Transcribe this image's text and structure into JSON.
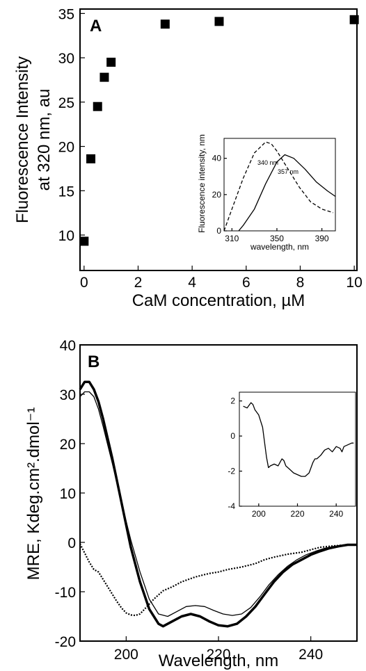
{
  "chart_data": [
    {
      "panel": "A",
      "type": "scatter",
      "xlabel": "CaM concentration, µM",
      "ylabel_line1": "Fluorescence Intensity",
      "ylabel_line2": "at 320 nm, au",
      "xlim": [
        -0.15,
        10.1
      ],
      "ylim": [
        6,
        35.5
      ],
      "xticks": [
        0,
        2,
        4,
        6,
        8,
        10
      ],
      "yticks": [
        10,
        15,
        20,
        25,
        30,
        35
      ],
      "marker": "square",
      "x": [
        0,
        0.25,
        0.5,
        0.75,
        1,
        3,
        5,
        10
      ],
      "y": [
        9.3,
        18.6,
        24.5,
        27.8,
        29.5,
        33.8,
        34.1,
        34.3
      ],
      "inset": {
        "type": "line",
        "xlabel": "wavelength, nm",
        "ylabel": "Fluorescence intensity, nm",
        "xlim": [
          303,
          402
        ],
        "ylim": [
          0,
          51
        ],
        "xticks": [
          310,
          350,
          390
        ],
        "yticks": [
          0,
          20,
          40
        ],
        "annotations": [
          "340 nm",
          "357 nm"
        ],
        "series": [
          {
            "style": "dashed",
            "x": [
              303,
              310,
              320,
              330,
              340,
              345,
              350,
              360,
              370,
              380,
              390,
              400
            ],
            "y": [
              0,
              12,
              29,
              43,
              49,
              48,
              44,
              34,
              24,
              16,
              12,
              10
            ]
          },
          {
            "style": "solid",
            "x": [
              316,
              320,
              330,
              340,
              350,
              357,
              365,
              375,
              385,
              395,
              402
            ],
            "y": [
              0,
              3,
              12,
              26,
              38,
              42,
              40,
              34,
              27,
              22,
              19
            ]
          }
        ]
      }
    },
    {
      "panel": "B",
      "type": "line",
      "xlabel": "Wavelength, nm",
      "ylabel": "MRE, Kdeg.cm².dmol⁻¹",
      "xlim": [
        190,
        250
      ],
      "ylim": [
        -20,
        40
      ],
      "xticks": [
        200,
        220,
        240
      ],
      "yticks": [
        -20,
        -10,
        0,
        10,
        20,
        30,
        40
      ],
      "series": [
        {
          "style": "thick",
          "x": [
            190,
            191,
            192,
            193,
            194,
            195,
            197,
            199,
            201,
            203,
            205,
            207,
            208,
            210,
            212,
            214,
            216,
            218,
            220,
            222,
            224,
            226,
            228,
            230,
            232,
            234,
            236,
            238,
            240,
            242,
            244,
            246,
            248,
            250
          ],
          "y": [
            31,
            32.5,
            32.5,
            31,
            28.5,
            25,
            17,
            8,
            -1,
            -8,
            -13.5,
            -16.5,
            -17,
            -16,
            -15,
            -14.5,
            -15,
            -16,
            -16.8,
            -17,
            -16.5,
            -15,
            -13,
            -10.5,
            -8,
            -6,
            -4.5,
            -3.5,
            -2.5,
            -1.8,
            -1.2,
            -0.8,
            -0.5,
            -0.5
          ]
        },
        {
          "style": "thin",
          "x": [
            190,
            191,
            192,
            193,
            194,
            195,
            197,
            199,
            201,
            203,
            205,
            207,
            209,
            211,
            213,
            215,
            217,
            219,
            221,
            223,
            225,
            227,
            229,
            231,
            233,
            235,
            237,
            239,
            241,
            243,
            245,
            247,
            250
          ],
          "y": [
            29.5,
            30.5,
            30.5,
            29.5,
            27,
            23.5,
            16,
            8,
            0.5,
            -6,
            -11.5,
            -14.5,
            -15,
            -14,
            -13,
            -12.8,
            -13,
            -13.8,
            -14.5,
            -14.8,
            -14.5,
            -13.2,
            -11,
            -8.5,
            -6.5,
            -4.8,
            -3.5,
            -2.5,
            -1.8,
            -1.2,
            -0.8,
            -0.6,
            -0.4
          ]
        },
        {
          "style": "dotted",
          "x": [
            190,
            192,
            193,
            194,
            195,
            196,
            197,
            198,
            199,
            200,
            201,
            202,
            203,
            204,
            206,
            208,
            210,
            212,
            215,
            218,
            220,
            222,
            225,
            228,
            230,
            232,
            235,
            238,
            240,
            242,
            245,
            248,
            250
          ],
          "y": [
            -0.3,
            -4,
            -5.5,
            -6,
            -7.5,
            -9,
            -10.5,
            -12,
            -13.3,
            -14.3,
            -14.7,
            -14.8,
            -14.5,
            -13.5,
            -11.5,
            -9.8,
            -9,
            -8,
            -7,
            -6.3,
            -6,
            -5.5,
            -5,
            -4.3,
            -3.5,
            -3,
            -2.4,
            -2,
            -1.5,
            -1,
            -0.7,
            -0.5,
            -0.5
          ]
        }
      ],
      "inset": {
        "type": "line",
        "xlim": [
          190,
          250
        ],
        "ylim": [
          -4,
          2.5
        ],
        "xticks": [
          200,
          220,
          240
        ],
        "yticks": [
          2,
          0,
          -2,
          -4
        ],
        "series": [
          {
            "style": "solid",
            "x": [
              192,
              194,
              196,
              197,
              198,
              200,
              202,
              204,
              205,
              206,
              208,
              210,
              211,
              212,
              213,
              214,
              216,
              218,
              220,
              222,
              224,
              226,
              228,
              229,
              230,
              232,
              234,
              236,
              238,
              240,
              242,
              243,
              244,
              246,
              248,
              249
            ],
            "y": [
              1.7,
              1.6,
              1.9,
              1.8,
              1.5,
              1.2,
              0.5,
              -1.2,
              -1.8,
              -1.7,
              -1.6,
              -1.7,
              -1.5,
              -1.3,
              -1.4,
              -1.7,
              -1.9,
              -2.1,
              -2.2,
              -2.3,
              -2.3,
              -2.1,
              -1.5,
              -1.3,
              -1.3,
              -1.1,
              -0.8,
              -0.7,
              -0.9,
              -0.6,
              -0.7,
              -0.9,
              -0.6,
              -0.5,
              -0.4,
              -0.4
            ]
          }
        ]
      }
    }
  ]
}
